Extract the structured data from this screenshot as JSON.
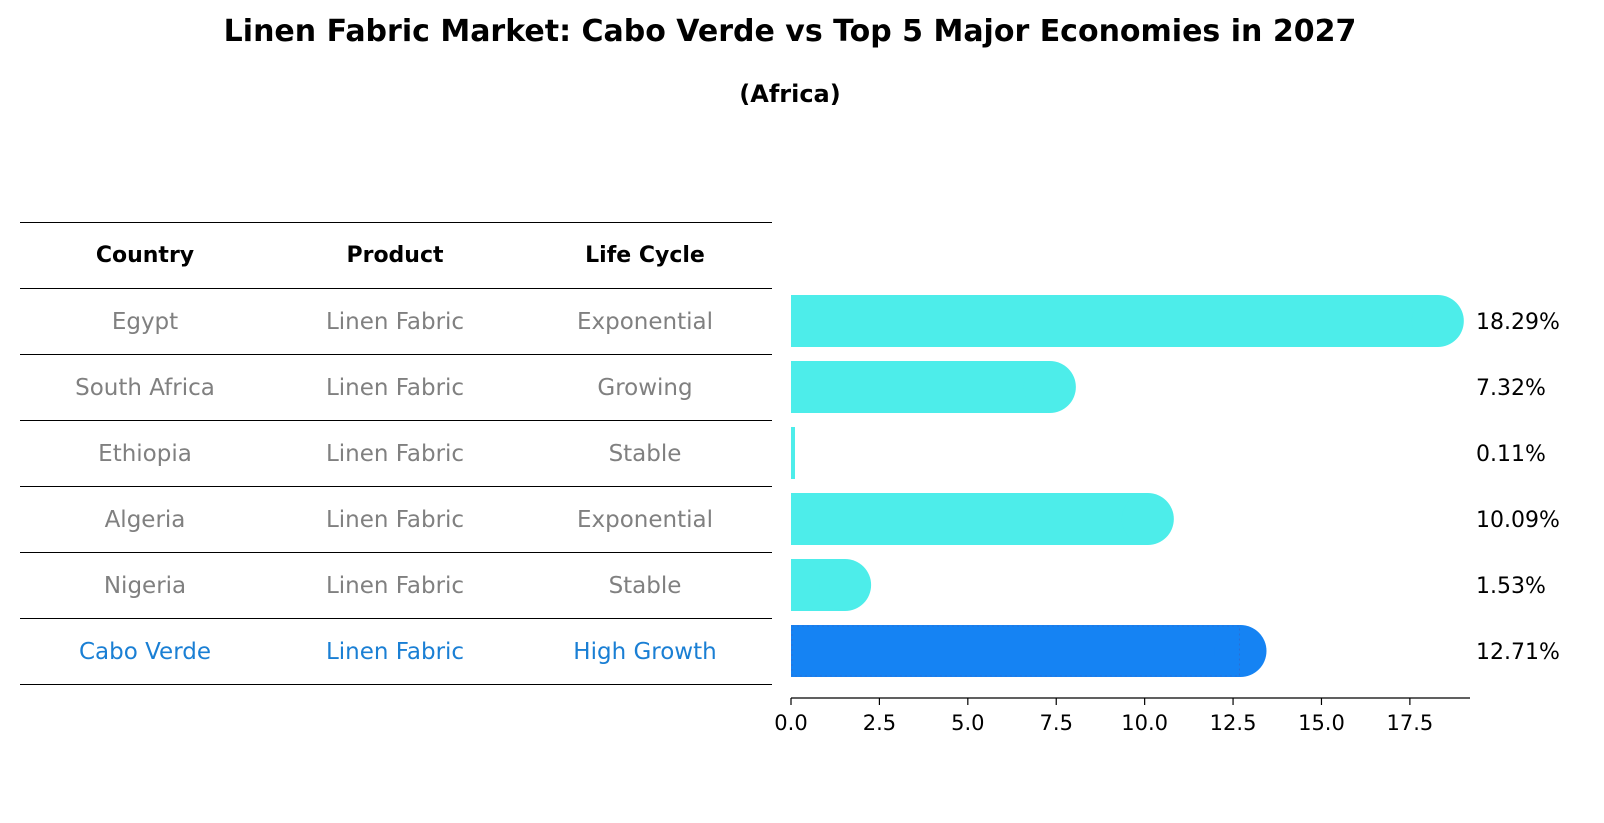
{
  "title": "Linen Fabric Market: Cabo Verde vs Top 5 Major Economies in 2027",
  "subtitle": "(Africa)",
  "colors": {
    "bar": "#4DEDEA",
    "highlight": "#1583F3",
    "row_text": "#808080",
    "highlight_text": "#1A7FD4"
  },
  "table": {
    "headers": [
      "Country",
      "Product",
      "Life Cycle"
    ],
    "rows": [
      {
        "country": "Egypt",
        "product": "Linen Fabric",
        "life_cycle": "Exponential"
      },
      {
        "country": "South Africa",
        "product": "Linen Fabric",
        "life_cycle": "Growing"
      },
      {
        "country": "Ethiopia",
        "product": "Linen Fabric",
        "life_cycle": "Stable"
      },
      {
        "country": "Algeria",
        "product": "Linen Fabric",
        "life_cycle": "Exponential"
      },
      {
        "country": "Nigeria",
        "product": "Linen Fabric",
        "life_cycle": "Stable"
      },
      {
        "country": "Cabo Verde",
        "product": "Linen Fabric",
        "life_cycle": "High Growth"
      }
    ]
  },
  "chart_data": {
    "type": "bar",
    "orientation": "horizontal",
    "categories": [
      "Egypt",
      "South Africa",
      "Ethiopia",
      "Algeria",
      "Nigeria",
      "Cabo Verde"
    ],
    "values": [
      18.29,
      7.32,
      0.11,
      10.09,
      1.53,
      12.71
    ],
    "value_labels": [
      "18.29%",
      "7.32%",
      "0.11%",
      "10.09%",
      "1.53%",
      "12.71%"
    ],
    "highlight": "Cabo Verde",
    "xlim": [
      0,
      19.2
    ],
    "xticks": [
      0.0,
      2.5,
      5.0,
      7.5,
      10.0,
      12.5,
      15.0,
      17.5
    ],
    "xtick_labels": [
      "0.0",
      "2.5",
      "5.0",
      "7.5",
      "10.0",
      "12.5",
      "15.0",
      "17.5"
    ],
    "grid": false
  }
}
